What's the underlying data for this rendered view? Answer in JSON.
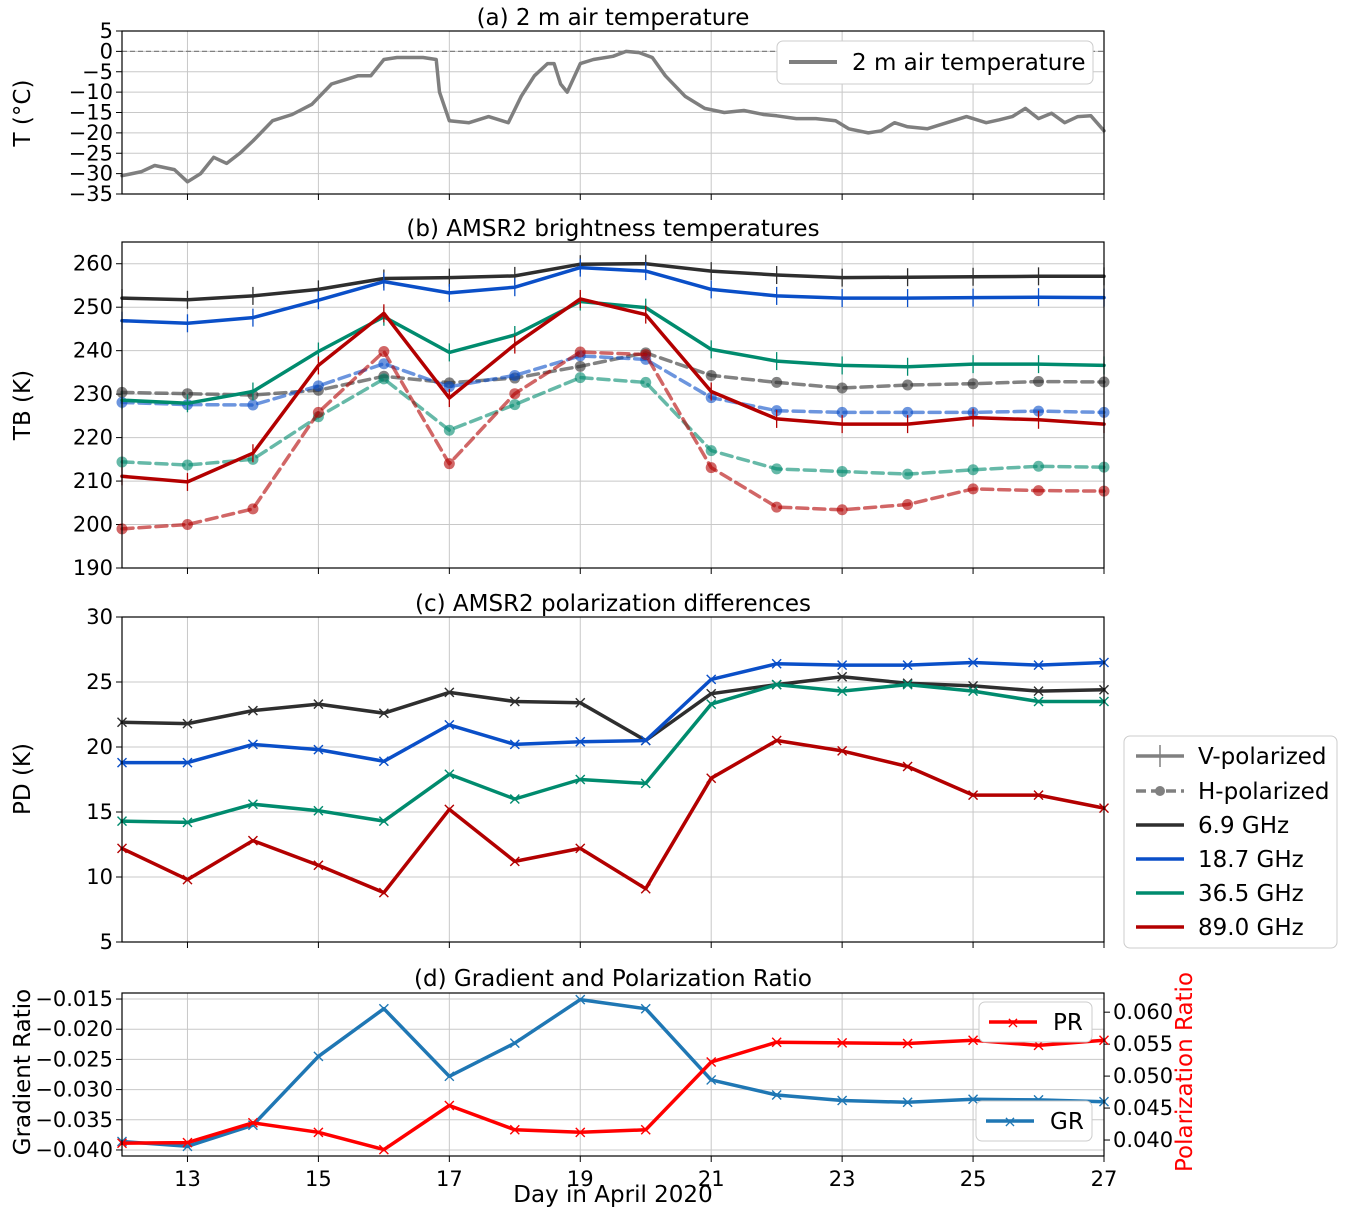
{
  "colors": {
    "air_temp": "#7f7f7f",
    "f69": "#2e2e2e",
    "f187": "#0a4fc8",
    "f365": "#008b6e",
    "f890": "#b30000",
    "gr": "#1f77b4",
    "pr": "#ff0000",
    "grid": "#c8c8c8",
    "zero_line": "#808080"
  },
  "shared": {
    "xlabel": "Day in April 2020",
    "xticks": [
      13,
      15,
      17,
      19,
      21,
      23,
      25,
      27
    ],
    "days": [
      12,
      13,
      14,
      15,
      16,
      17,
      18,
      19,
      20,
      21,
      22,
      23,
      24,
      25,
      26,
      27
    ],
    "xlim": [
      12,
      27
    ]
  },
  "legend_main": {
    "v_label": "V-polarized",
    "h_label": "H-polarized",
    "f69_label": "6.9 GHz",
    "f187_label": "18.7 GHz",
    "f365_label": "36.5 GHz",
    "f890_label": "89.0 GHz"
  },
  "chart_data": [
    {
      "id": "a",
      "type": "line",
      "title": "(a) 2 m air temperature",
      "ylabel": "T (°C)",
      "ylim": [
        -35,
        5
      ],
      "yticks": [
        5,
        0,
        -5,
        -10,
        -15,
        -20,
        -25,
        -30,
        -35
      ],
      "grid": true,
      "legend_position": "upper right",
      "legend_label": "2 m air temperature",
      "x": [
        12.0,
        12.3,
        12.5,
        12.8,
        13.0,
        13.2,
        13.4,
        13.6,
        13.8,
        14.0,
        14.3,
        14.6,
        14.9,
        15.2,
        15.4,
        15.6,
        15.8,
        16.0,
        16.2,
        16.4,
        16.6,
        16.8,
        16.85,
        17.0,
        17.3,
        17.6,
        17.9,
        18.1,
        18.3,
        18.5,
        18.6,
        18.7,
        18.8,
        19.0,
        19.2,
        19.5,
        19.7,
        19.9,
        20.1,
        20.3,
        20.6,
        20.9,
        21.2,
        21.5,
        21.8,
        22.0,
        22.3,
        22.6,
        22.9,
        23.1,
        23.4,
        23.6,
        23.8,
        24.0,
        24.3,
        24.6,
        24.9,
        25.2,
        25.4,
        25.6,
        25.8,
        26.0,
        26.2,
        26.4,
        26.6,
        26.8,
        27.0
      ],
      "y": [
        -30.5,
        -29.5,
        -28,
        -29,
        -32,
        -30,
        -26,
        -27.5,
        -25,
        -22,
        -17,
        -15.5,
        -13,
        -8,
        -7,
        -6,
        -6,
        -2,
        -1.5,
        -1.5,
        -1.5,
        -2,
        -10,
        -17,
        -17.5,
        -16,
        -17.5,
        -11,
        -6,
        -3,
        -3,
        -8,
        -10,
        -3,
        -2,
        -1.2,
        0,
        -0.3,
        -1.5,
        -6,
        -11,
        -14,
        -15,
        -14.5,
        -15.5,
        -15.8,
        -16.5,
        -16.5,
        -17,
        -19,
        -20,
        -19.5,
        -17.5,
        -18.5,
        -19,
        -17.5,
        -16,
        -17.5,
        -16.8,
        -16,
        -14,
        -16.5,
        -15.2,
        -17.5,
        -16,
        -15.8,
        -19.5
      ]
    },
    {
      "id": "b",
      "type": "line",
      "title": "(b) AMSR2 brightness temperatures",
      "ylabel": "TB (K)",
      "ylim": [
        190,
        265
      ],
      "yticks": [
        190,
        200,
        210,
        220,
        230,
        240,
        250,
        260
      ],
      "grid": true,
      "series": [
        {
          "freq": "6.9 GHz",
          "pol": "V",
          "color_key": "f69",
          "values": [
            252.1,
            251.7,
            252.6,
            254.1,
            256.6,
            256.8,
            257.2,
            259.9,
            260.0,
            258.3,
            257.4,
            256.8,
            256.9,
            257.0,
            257.1,
            257.1
          ]
        },
        {
          "freq": "18.7 GHz",
          "pol": "V",
          "color_key": "f187",
          "values": [
            246.9,
            246.3,
            247.6,
            251.6,
            255.9,
            253.3,
            254.6,
            259.1,
            258.3,
            254.1,
            252.6,
            252.1,
            252.1,
            252.2,
            252.3,
            252.2
          ]
        },
        {
          "freq": "36.5 GHz",
          "pol": "V",
          "color_key": "f365",
          "values": [
            228.6,
            227.9,
            230.6,
            239.8,
            247.8,
            239.6,
            243.6,
            251.3,
            249.9,
            240.3,
            237.6,
            236.6,
            236.3,
            236.9,
            236.9,
            236.6
          ]
        },
        {
          "freq": "89.0 GHz",
          "pol": "V",
          "color_key": "f890",
          "values": [
            211.1,
            209.8,
            216.4,
            236.6,
            248.6,
            229.1,
            241.4,
            251.9,
            248.3,
            230.6,
            224.3,
            223.1,
            223.1,
            224.6,
            224.1,
            223.1
          ]
        },
        {
          "freq": "6.9 GHz",
          "pol": "H",
          "color_key": "f69",
          "values": [
            230.4,
            230.1,
            229.8,
            230.9,
            234.1,
            232.6,
            233.7,
            236.4,
            239.5,
            234.3,
            232.7,
            231.4,
            232.1,
            232.4,
            232.9,
            232.8
          ]
        },
        {
          "freq": "18.7 GHz",
          "pol": "H",
          "color_key": "f187",
          "values": [
            228.1,
            227.6,
            227.5,
            231.9,
            237.0,
            231.7,
            234.3,
            238.8,
            238.0,
            229.2,
            226.2,
            225.8,
            225.8,
            225.8,
            226.1,
            225.8
          ]
        },
        {
          "freq": "36.5 GHz",
          "pol": "H",
          "color_key": "f365",
          "values": [
            214.4,
            213.7,
            215.0,
            224.8,
            233.5,
            221.7,
            227.6,
            233.8,
            232.7,
            217.0,
            212.8,
            212.2,
            211.6,
            212.6,
            213.4,
            213.2
          ]
        },
        {
          "freq": "89.0 GHz",
          "pol": "H",
          "color_key": "f890",
          "values": [
            199.0,
            200.0,
            203.6,
            225.8,
            239.8,
            214.0,
            230.1,
            239.7,
            239.1,
            213.1,
            204.0,
            203.4,
            204.6,
            208.2,
            207.8,
            207.7
          ]
        }
      ]
    },
    {
      "id": "c",
      "type": "line",
      "title": "(c) AMSR2 polarization differences",
      "ylabel": "PD (K)",
      "ylim": [
        5,
        30
      ],
      "yticks": [
        5,
        10,
        15,
        20,
        25,
        30
      ],
      "grid": true,
      "series": [
        {
          "freq": "6.9 GHz",
          "color_key": "f69",
          "values": [
            21.9,
            21.8,
            22.8,
            23.3,
            22.6,
            24.2,
            23.5,
            23.4,
            20.5,
            24.1,
            24.8,
            25.4,
            24.9,
            24.7,
            24.3,
            24.4
          ]
        },
        {
          "freq": "18.7 GHz",
          "color_key": "f187",
          "values": [
            18.8,
            18.8,
            20.2,
            19.8,
            18.9,
            21.7,
            20.2,
            20.4,
            20.5,
            25.2,
            26.4,
            26.3,
            26.3,
            26.5,
            26.3,
            26.5
          ]
        },
        {
          "freq": "36.5 GHz",
          "color_key": "f365",
          "values": [
            14.3,
            14.2,
            15.6,
            15.1,
            14.3,
            17.9,
            16.0,
            17.5,
            17.2,
            23.3,
            24.8,
            24.3,
            24.8,
            24.3,
            23.5,
            23.5
          ]
        },
        {
          "freq": "89.0 GHz",
          "color_key": "f890",
          "values": [
            12.2,
            9.8,
            12.8,
            10.9,
            8.8,
            15.2,
            11.2,
            12.2,
            9.1,
            17.6,
            20.5,
            19.7,
            18.5,
            16.3,
            16.3,
            15.3
          ]
        }
      ]
    },
    {
      "id": "d",
      "type": "line",
      "title": "(d) Gradient and Polarization Ratio",
      "ylabel": "Gradient Ratio",
      "ylabel_right": "Polarization Ratio",
      "ylim": [
        -0.041,
        -0.014
      ],
      "yticks": [
        -0.015,
        -0.02,
        -0.025,
        -0.03,
        -0.035,
        -0.04
      ],
      "ytick_labels": [
        "−0.015",
        "−0.020",
        "−0.025",
        "−0.030",
        "−0.035",
        "−0.040"
      ],
      "ylim_right": [
        0.0375,
        0.063
      ],
      "yticks_right": [
        0.04,
        0.045,
        0.05,
        0.055,
        0.06
      ],
      "ytick_labels_right": [
        "0.040",
        "0.045",
        "0.050",
        "0.055",
        "0.060"
      ],
      "grid": true,
      "series": [
        {
          "name": "GR",
          "axis": "left",
          "color_key": "gr",
          "legend_position": "lower right",
          "values": [
            -0.0386,
            -0.0394,
            -0.0359,
            -0.0245,
            -0.0166,
            -0.0278,
            -0.0223,
            -0.0151,
            -0.0166,
            -0.0284,
            -0.0309,
            -0.0318,
            -0.0321,
            -0.0316,
            -0.0317,
            -0.032
          ]
        },
        {
          "name": "PR",
          "axis": "right",
          "color_key": "pr",
          "legend_position": "upper right",
          "values": [
            0.0395,
            0.0396,
            0.0427,
            0.0412,
            0.0385,
            0.0454,
            0.0416,
            0.0412,
            0.0416,
            0.0522,
            0.0553,
            0.0552,
            0.0551,
            0.0556,
            0.0548,
            0.0556
          ]
        }
      ]
    }
  ]
}
